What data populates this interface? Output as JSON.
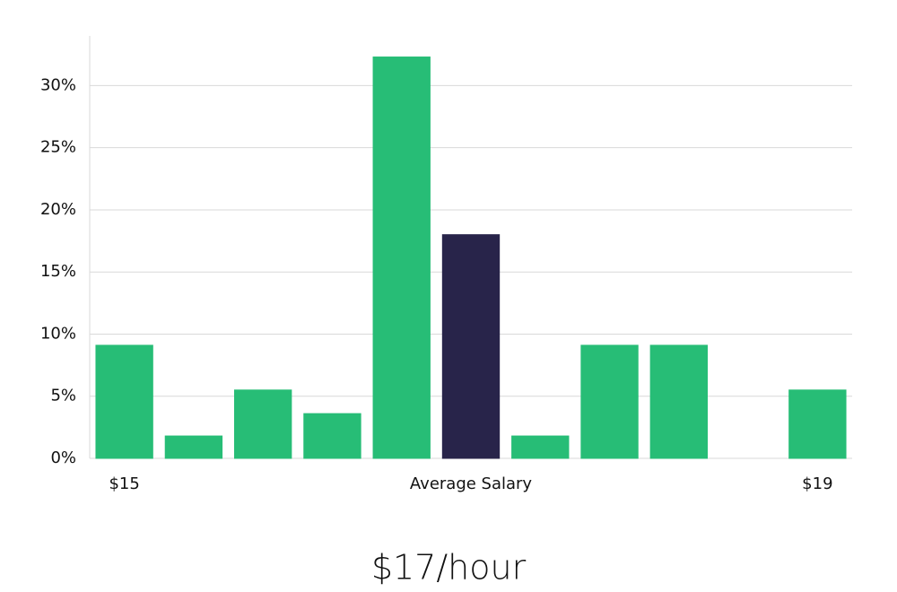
{
  "chart_data": {
    "type": "bar",
    "subtitle": "$17/hour",
    "categories": [
      "$15",
      null,
      null,
      null,
      null,
      "Average Salary",
      null,
      null,
      null,
      null,
      "$19"
    ],
    "values": [
      9.1,
      1.8,
      5.5,
      3.6,
      32.3,
      18.0,
      1.8,
      9.1,
      9.1,
      0,
      5.5
    ],
    "colors": [
      "#27bd76",
      "#27bd76",
      "#27bd76",
      "#27bd76",
      "#27bd76",
      "#28244a",
      "#27bd76",
      "#27bd76",
      "#27bd76",
      "#27bd76",
      "#27bd76"
    ],
    "ylim": [
      0,
      34
    ],
    "yticks": [
      {
        "value": 0,
        "label": "0%"
      },
      {
        "value": 5,
        "label": "5%"
      },
      {
        "value": 10,
        "label": "10%"
      },
      {
        "value": 15,
        "label": "15%"
      },
      {
        "value": 20,
        "label": "20%"
      },
      {
        "value": 25,
        "label": "25%"
      },
      {
        "value": 30,
        "label": "30%"
      }
    ],
    "grid": true
  }
}
